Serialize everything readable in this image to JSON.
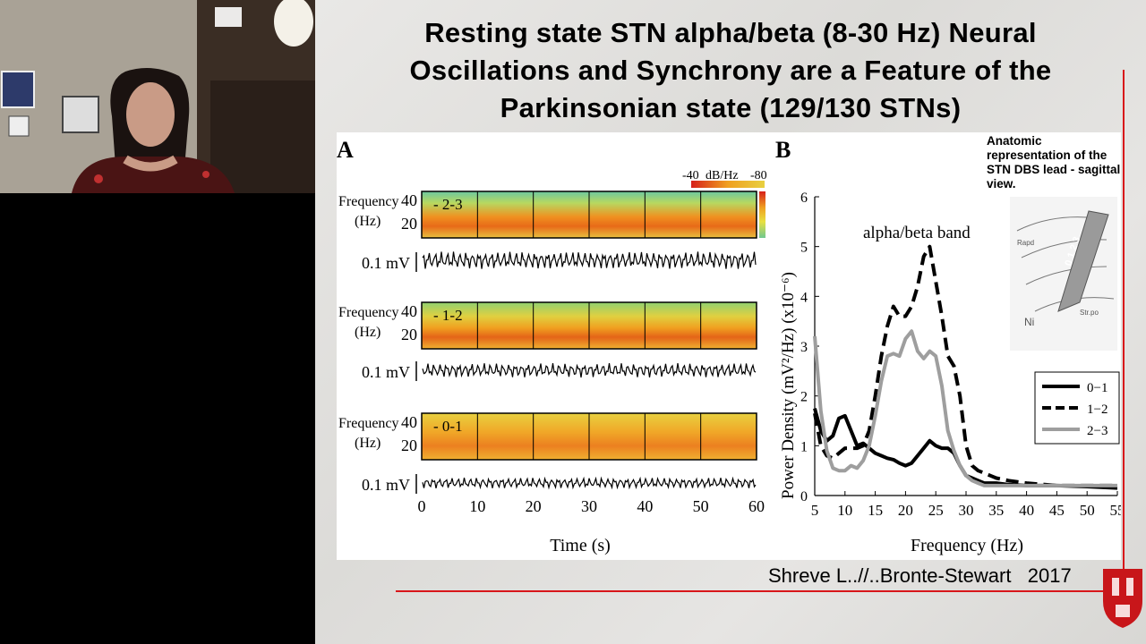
{
  "slide": {
    "title_lines": [
      "Resting state STN alpha/beta (8-30 Hz) Neural",
      "Oscillations and Synchrony are a Feature of the",
      "Parkinsonian state (129/130 STNs)"
    ],
    "citation": "Shreve L..//..Bronte-Stewart   2017",
    "accent_color": "#d8161a"
  },
  "panel_a": {
    "label": "A",
    "colorbar_left": "-40",
    "colorbar_unit": "dB/Hz",
    "colorbar_right": "-80",
    "freq_label_1": "Frequency",
    "freq_label_2": "(Hz)",
    "tick_40": "40",
    "tick_20": "20",
    "amp_label": "0.1 mV",
    "rows": [
      {
        "contact": "2-3"
      },
      {
        "contact": "1-2"
      },
      {
        "contact": "0-1"
      }
    ],
    "x_ticks": [
      "0",
      "10",
      "20",
      "30",
      "40",
      "50",
      "60"
    ],
    "xlabel": "Time (s)"
  },
  "panel_b": {
    "label": "B",
    "annotation": "alpha/beta band",
    "anatomic_text": "Anatomic representation of the STN DBS lead  - sagittal view.",
    "ylabel": "Power Density (mV²/Hz) (x10⁻⁶)",
    "xlabel": "Frequency (Hz)",
    "legend": [
      "0−1",
      "1−2",
      "2−3"
    ]
  },
  "chart_data": {
    "type": "line",
    "xlabel": "Frequency (Hz)",
    "ylabel": "Power Density (mV²/Hz) (x10⁻⁶)",
    "xlim": [
      5,
      55
    ],
    "ylim": [
      0,
      6
    ],
    "x_ticks": [
      5,
      10,
      15,
      20,
      25,
      30,
      35,
      40,
      45,
      50,
      55
    ],
    "y_ticks": [
      0,
      1,
      2,
      3,
      4,
      5,
      6
    ],
    "legend_position": "bottom-right",
    "series": [
      {
        "name": "0−1",
        "style": "solid-black",
        "x": [
          5,
          6,
          7,
          8,
          9,
          10,
          11,
          12,
          13,
          14,
          15,
          16,
          17,
          18,
          19,
          20,
          21,
          22,
          23,
          24,
          25,
          26,
          27,
          28,
          29,
          30,
          31,
          32,
          33,
          34,
          35,
          37,
          40,
          45,
          50,
          55
        ],
        "y": [
          1.75,
          1.3,
          1.1,
          1.2,
          1.55,
          1.6,
          1.3,
          1.0,
          1.05,
          0.95,
          0.85,
          0.8,
          0.75,
          0.72,
          0.65,
          0.6,
          0.65,
          0.8,
          0.95,
          1.1,
          1.0,
          0.95,
          0.95,
          0.85,
          0.6,
          0.4,
          0.35,
          0.3,
          0.25,
          0.25,
          0.25,
          0.22,
          0.2,
          0.2,
          0.18,
          0.15
        ]
      },
      {
        "name": "1−2",
        "style": "dashed-black",
        "x": [
          5,
          6,
          7,
          8,
          9,
          10,
          11,
          12,
          13,
          14,
          15,
          16,
          17,
          18,
          19,
          20,
          21,
          22,
          23,
          24,
          25,
          26,
          27,
          28,
          29,
          30,
          31,
          32,
          33,
          34,
          35,
          37,
          40,
          45,
          50,
          55
        ],
        "y": [
          1.65,
          1.0,
          0.8,
          0.75,
          0.85,
          0.95,
          0.95,
          0.95,
          1.0,
          1.3,
          2.0,
          2.8,
          3.4,
          3.8,
          3.6,
          3.6,
          3.8,
          4.2,
          4.8,
          5.0,
          4.3,
          3.6,
          2.8,
          2.6,
          2.0,
          1.0,
          0.6,
          0.5,
          0.45,
          0.4,
          0.35,
          0.3,
          0.25,
          0.2,
          0.2,
          0.2
        ]
      },
      {
        "name": "2−3",
        "style": "solid-gray",
        "x": [
          5,
          6,
          7,
          8,
          9,
          10,
          11,
          12,
          13,
          14,
          15,
          16,
          17,
          18,
          19,
          20,
          21,
          22,
          23,
          24,
          25,
          26,
          27,
          28,
          29,
          30,
          31,
          32,
          33,
          34,
          35,
          37,
          40,
          45,
          50,
          55
        ],
        "y": [
          3.2,
          1.7,
          0.9,
          0.55,
          0.5,
          0.5,
          0.6,
          0.55,
          0.7,
          1.0,
          1.6,
          2.3,
          2.8,
          2.85,
          2.8,
          3.15,
          3.3,
          2.9,
          2.75,
          2.9,
          2.8,
          2.2,
          1.3,
          0.9,
          0.6,
          0.4,
          0.3,
          0.25,
          0.2,
          0.2,
          0.2,
          0.2,
          0.2,
          0.2,
          0.2,
          0.2
        ]
      }
    ]
  }
}
